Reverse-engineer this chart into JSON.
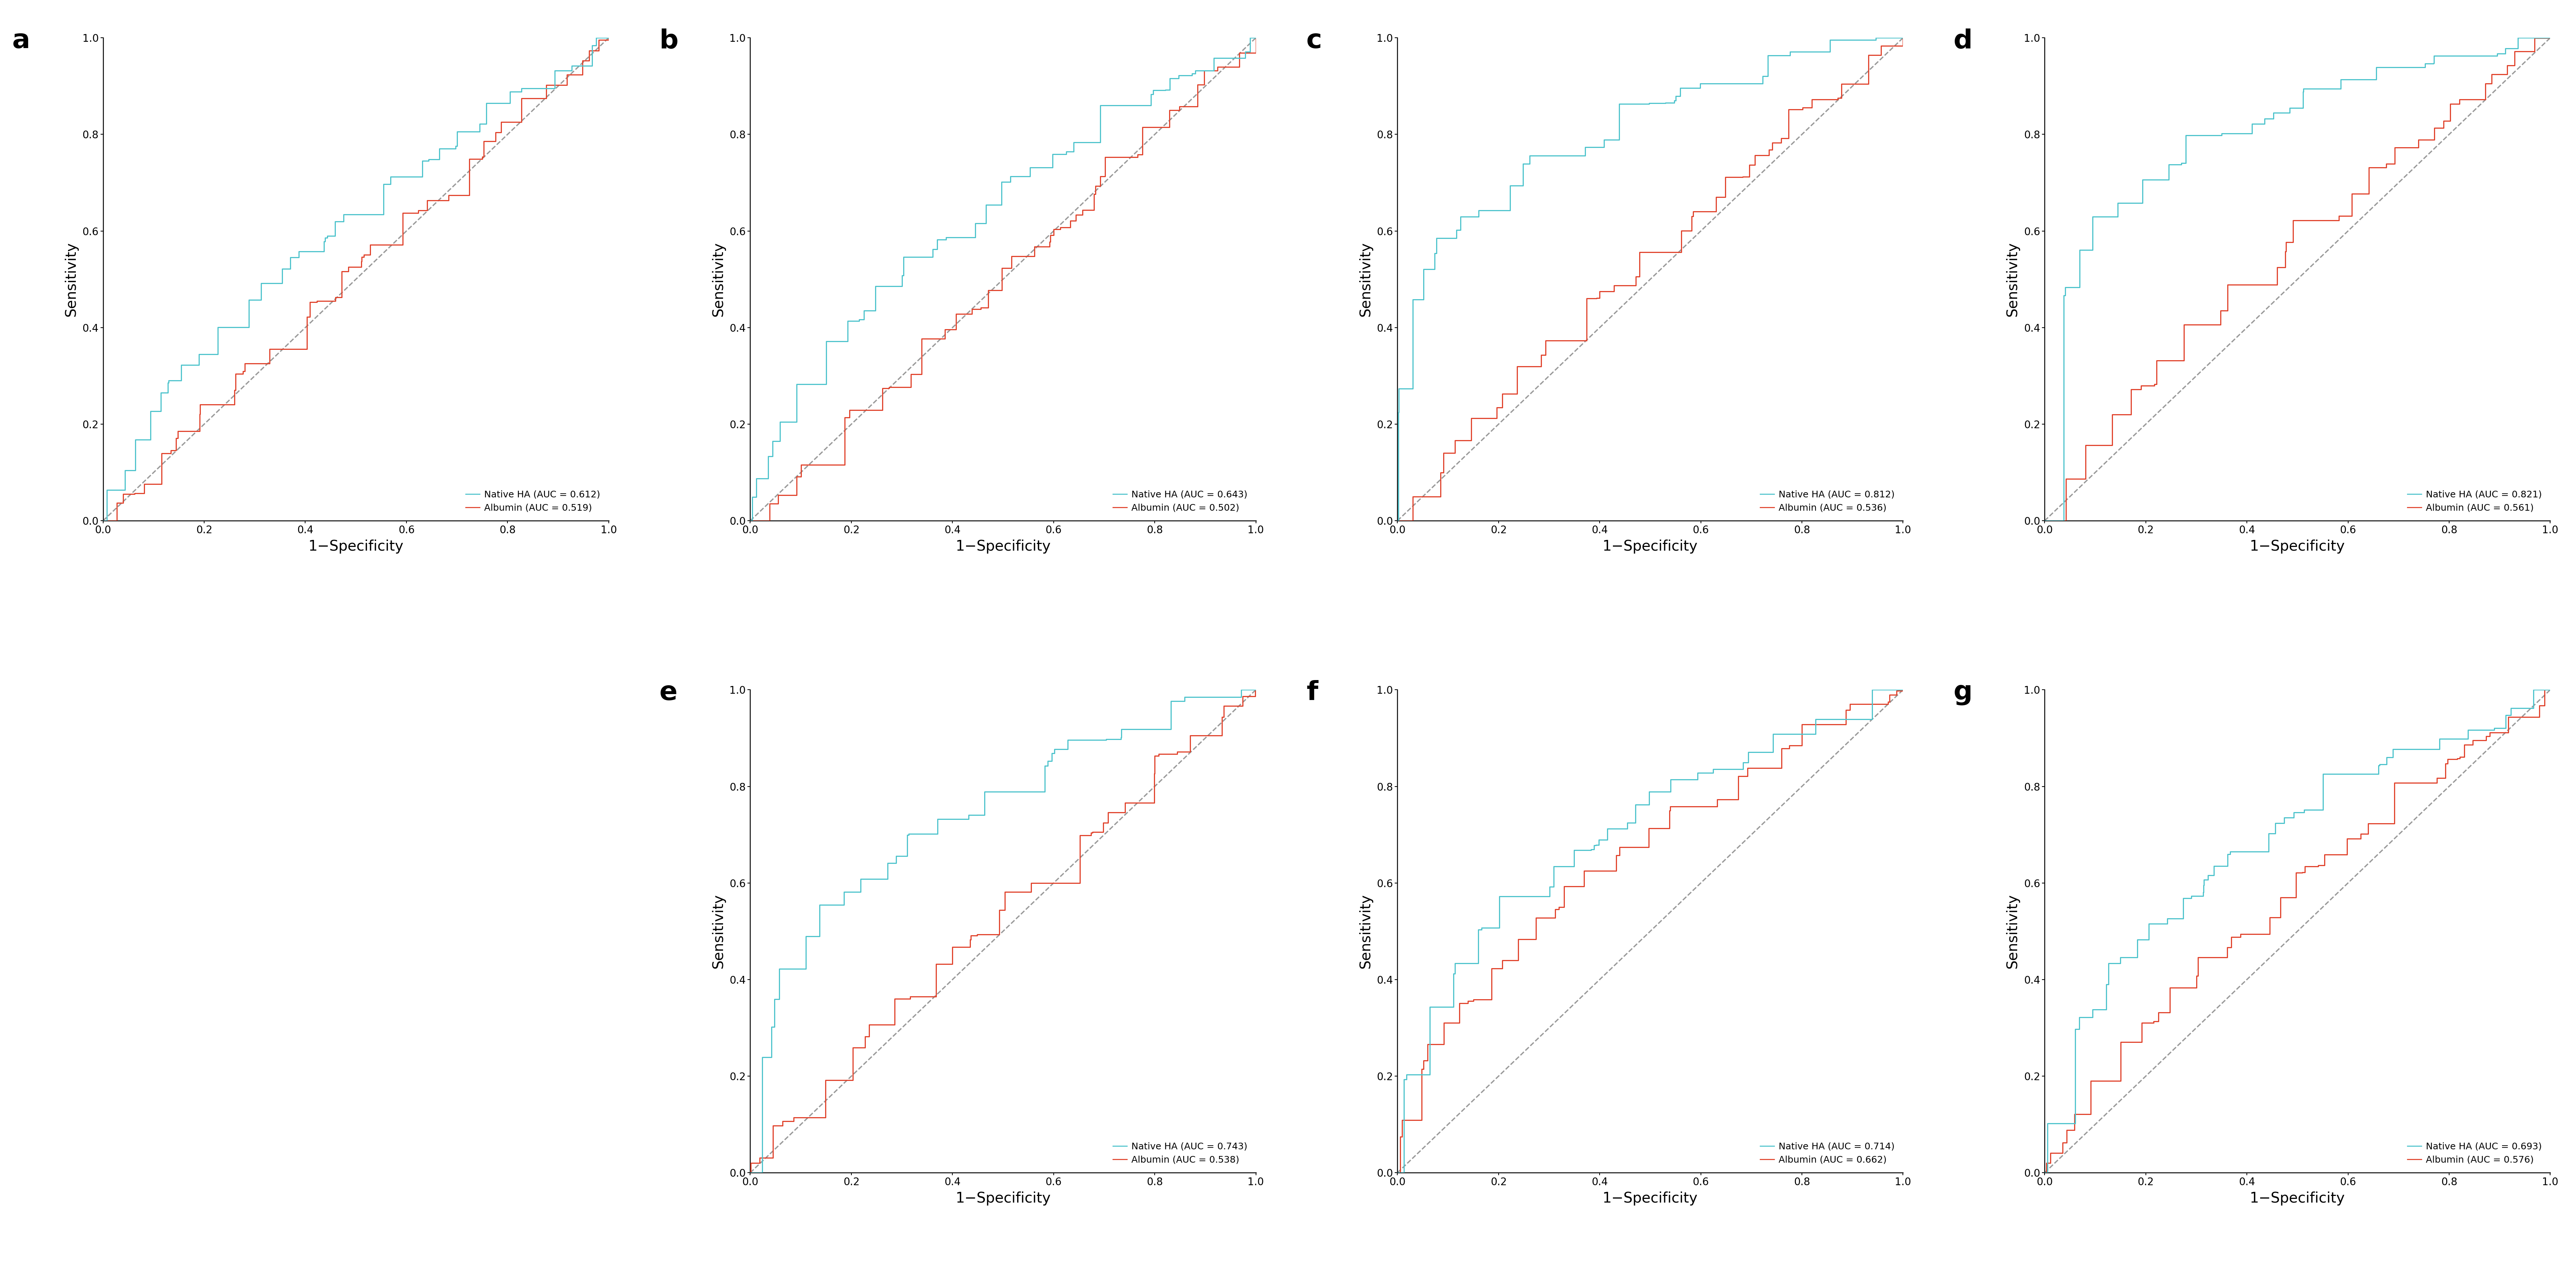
{
  "panels": [
    {
      "label": "a",
      "ha_auc": 0.612,
      "alb_auc": 0.519,
      "ha_color": "#4DC3CC",
      "alb_color": "#E0422B"
    },
    {
      "label": "b",
      "ha_auc": 0.643,
      "alb_auc": 0.502,
      "ha_color": "#4DC3CC",
      "alb_color": "#E0422B"
    },
    {
      "label": "c",
      "ha_auc": 0.812,
      "alb_auc": 0.536,
      "ha_color": "#4DC3CC",
      "alb_color": "#E0422B"
    },
    {
      "label": "d",
      "ha_auc": 0.821,
      "alb_auc": 0.561,
      "ha_color": "#4DC3CC",
      "alb_color": "#E0422B"
    },
    {
      "label": "e",
      "ha_auc": 0.743,
      "alb_auc": 0.538,
      "ha_color": "#4DC3CC",
      "alb_color": "#E0422B"
    },
    {
      "label": "f",
      "ha_auc": 0.714,
      "alb_auc": 0.662,
      "ha_color": "#4DC3CC",
      "alb_color": "#E0422B"
    },
    {
      "label": "g",
      "ha_auc": 0.693,
      "alb_auc": 0.576,
      "ha_color": "#4DC3CC",
      "alb_color": "#E0422B"
    }
  ],
  "xlabel": "1−Specificity",
  "ylabel": "Sensitivity",
  "diag_color": "#999999",
  "diag_lw": 2.5,
  "line_lw": 2.2,
  "legend_fontsize": 18,
  "label_fontsize": 28,
  "tick_fontsize": 20,
  "panel_label_fontsize": 52,
  "background": "#ffffff"
}
